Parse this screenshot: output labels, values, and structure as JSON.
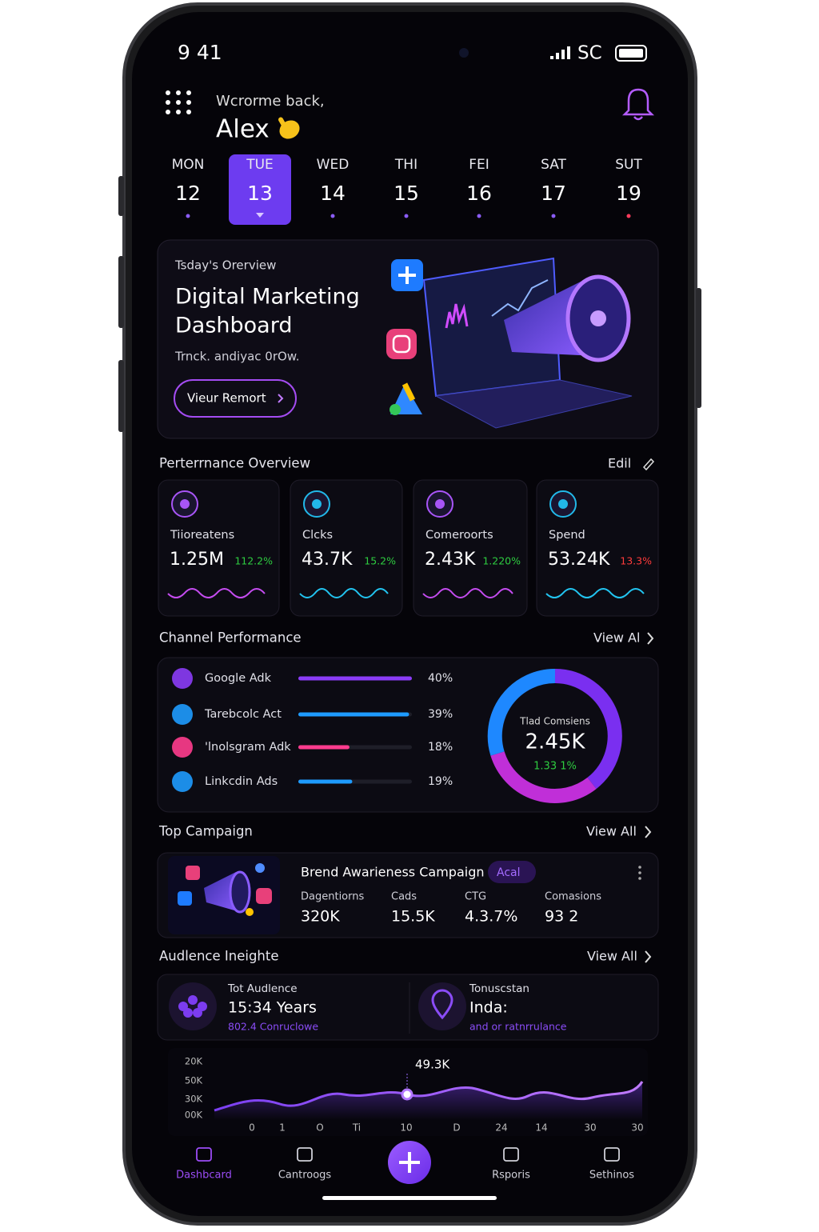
{
  "status": {
    "time": "9 41",
    "carrier": "SC"
  },
  "header": {
    "greeting": "Wcrorme back,",
    "name": "Alex"
  },
  "days": [
    {
      "day": "MON",
      "date": "12"
    },
    {
      "day": "TUE",
      "date": "13"
    },
    {
      "day": "WED",
      "date": "14"
    },
    {
      "day": "THI",
      "date": "15"
    },
    {
      "day": "FEI",
      "date": "16"
    },
    {
      "day": "SAT",
      "date": "17"
    },
    {
      "day": "SUT",
      "date": "19"
    }
  ],
  "overview": {
    "label": "Tsday's Orerview",
    "title_lines": [
      "Digital Marketing",
      "Dashboard"
    ],
    "subtitle": "Trnck. andiyac 0rOw.",
    "button": "Vieur Remort"
  },
  "performance": {
    "title": "Perterrnance Overview",
    "action": "Edil",
    "cards": [
      {
        "label": "Tiioreatens",
        "value": "1.25M",
        "change": "112.2%",
        "change_color": "#2ecc40",
        "accent": "#a855f7"
      },
      {
        "label": "Clcks",
        "value": "43.7K",
        "change": "15.2%",
        "change_color": "#2ecc40",
        "accent": "#22b8e8"
      },
      {
        "label": "Comeroorts",
        "value": "2.43K",
        "change": "1.220%",
        "change_color": "#2ecc40",
        "accent": "#a855f7"
      },
      {
        "label": "Spend",
        "value": "53.24K",
        "change": "13.3%",
        "change_color": "#ff3b3b",
        "accent": "#22b8e8"
      }
    ]
  },
  "channels": {
    "title": "Channel Performance",
    "action": "View Al",
    "items": [
      {
        "name": "Google Adk",
        "value": 40,
        "value_label": "40%",
        "color": "#8b3cf7"
      },
      {
        "name": "Tarebcolc Act",
        "value": 39,
        "value_label": "39%",
        "color": "#1e9bff"
      },
      {
        "name": "'lnolsgram Adk",
        "value": 18,
        "value_label": "18%",
        "color": "#ff3c8e"
      },
      {
        "name": "Linkcdin Ads",
        "value": 19,
        "value_label": "19%",
        "color": "#1e9bff"
      }
    ],
    "donut": {
      "label": "Tlad Comsiens",
      "value": "2.45K",
      "change": "1.33 1%"
    }
  },
  "campaign": {
    "title": "Top Campaign",
    "action": "View All",
    "name": "Brend Awarieness Campaign",
    "badge": "Acal",
    "stats": [
      {
        "label": "Dagentiorns",
        "value": "320K"
      },
      {
        "label": "Cads",
        "value": "15.5K"
      },
      {
        "label": "CTG",
        "value": "4.3.7%"
      },
      {
        "label": "Comasions",
        "value": "93 2"
      }
    ]
  },
  "audience": {
    "title": "Audlence Ineighte",
    "action": "View All",
    "items": [
      {
        "label": "Tot Audlence",
        "value": "15:34 Years",
        "note": "802.4 Conruclowe"
      },
      {
        "label": "Tonuscstan",
        "value": "Inda:",
        "note": "and or ratnrrulance"
      }
    ],
    "chart": {
      "y_labels": [
        "20K",
        "50K",
        "30K",
        "00K"
      ],
      "x_labels": [
        "0",
        "1",
        "O",
        "Ti",
        "10",
        "D",
        "24",
        "14",
        "30",
        "30"
      ],
      "peak_label": "49.3K"
    }
  },
  "nav": [
    "Dashbcard",
    "Cantroogs",
    "Rsporis",
    "Sethinos"
  ]
}
